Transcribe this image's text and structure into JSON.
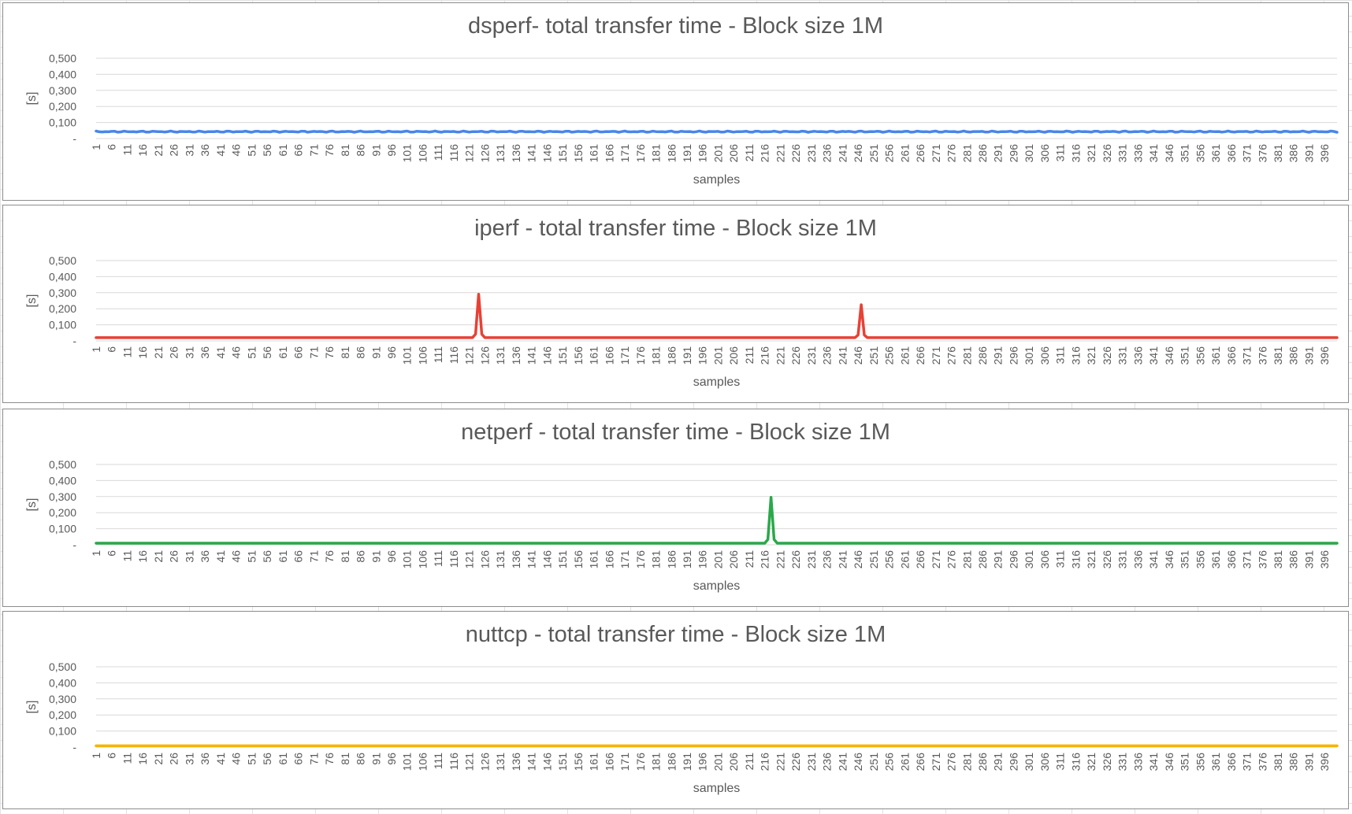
{
  "chart_data": [
    {
      "type": "line",
      "title": "dsperf- total transfer time - Block size 1M",
      "xlabel": "samples",
      "ylabel": "[s]",
      "ylim": [
        0,
        0.5
      ],
      "yticks": [
        0,
        0.1,
        0.2,
        0.3,
        0.4,
        0.5
      ],
      "ytick_labels": [
        "-",
        "0,100",
        "0,200",
        "0,300",
        "0,400",
        "0,500"
      ],
      "x_range": [
        1,
        400
      ],
      "x_tick_labels": [
        "1",
        "6",
        "11",
        "16",
        "21",
        "26",
        "31",
        "36",
        "41",
        "46",
        "51",
        "56",
        "61",
        "66",
        "71",
        "76",
        "81",
        "86",
        "91",
        "96",
        "101",
        "106",
        "111",
        "116",
        "121",
        "126",
        "131",
        "136",
        "141",
        "146",
        "151",
        "156",
        "161",
        "166",
        "171",
        "176",
        "181",
        "186",
        "191",
        "196",
        "201",
        "206",
        "211",
        "216",
        "221",
        "226",
        "231",
        "236",
        "241",
        "246",
        "251",
        "256",
        "261",
        "266",
        "271",
        "276",
        "281",
        "286",
        "291",
        "296",
        "301",
        "306",
        "311",
        "316",
        "321",
        "326",
        "331",
        "336",
        "341",
        "346",
        "351",
        "356",
        "361",
        "366",
        "371",
        "376",
        "381",
        "386",
        "391",
        "396"
      ],
      "grid": true,
      "legend": "none",
      "series": [
        {
          "color": "#4a86e8",
          "baseline": 0.043,
          "jitter": 0.004,
          "spikes": []
        }
      ]
    },
    {
      "type": "line",
      "title": "iperf - total transfer time - Block size 1M",
      "xlabel": "samples",
      "ylabel": "[s]",
      "ylim": [
        0,
        0.5
      ],
      "yticks": [
        0,
        0.1,
        0.2,
        0.3,
        0.4,
        0.5
      ],
      "ytick_labels": [
        "-",
        "0,100",
        "0,200",
        "0,300",
        "0,400",
        "0,500"
      ],
      "x_range": [
        1,
        400
      ],
      "x_tick_labels": [
        "1",
        "6",
        "11",
        "16",
        "21",
        "26",
        "31",
        "36",
        "41",
        "46",
        "51",
        "56",
        "61",
        "66",
        "71",
        "76",
        "81",
        "86",
        "91",
        "96",
        "101",
        "106",
        "111",
        "116",
        "121",
        "126",
        "131",
        "136",
        "141",
        "146",
        "151",
        "156",
        "161",
        "166",
        "171",
        "176",
        "181",
        "186",
        "191",
        "196",
        "201",
        "206",
        "211",
        "216",
        "221",
        "226",
        "231",
        "236",
        "241",
        "246",
        "251",
        "256",
        "261",
        "266",
        "271",
        "276",
        "281",
        "286",
        "291",
        "296",
        "301",
        "306",
        "311",
        "316",
        "321",
        "326",
        "331",
        "336",
        "341",
        "346",
        "351",
        "356",
        "361",
        "366",
        "371",
        "376",
        "381",
        "386",
        "391",
        "396"
      ],
      "grid": true,
      "legend": "none",
      "series": [
        {
          "color": "#e84135",
          "baseline": 0.02,
          "jitter": 0,
          "spikes": [
            {
              "x": 124,
              "y": 0.29
            },
            {
              "x": 247,
              "y": 0.225
            }
          ]
        }
      ]
    },
    {
      "type": "line",
      "title": "netperf - total transfer time - Block size 1M",
      "xlabel": "samples",
      "ylabel": "[s]",
      "ylim": [
        0,
        0.5
      ],
      "yticks": [
        0,
        0.1,
        0.2,
        0.3,
        0.4,
        0.5
      ],
      "ytick_labels": [
        "-",
        "0,100",
        "0,200",
        "0,300",
        "0,400",
        "0,500"
      ],
      "x_range": [
        1,
        400
      ],
      "x_tick_labels": [
        "1",
        "6",
        "11",
        "16",
        "21",
        "26",
        "31",
        "36",
        "41",
        "46",
        "51",
        "56",
        "61",
        "66",
        "71",
        "76",
        "81",
        "86",
        "91",
        "96",
        "101",
        "106",
        "111",
        "116",
        "121",
        "126",
        "131",
        "136",
        "141",
        "146",
        "151",
        "156",
        "161",
        "166",
        "171",
        "176",
        "181",
        "186",
        "191",
        "196",
        "201",
        "206",
        "211",
        "216",
        "221",
        "226",
        "231",
        "236",
        "241",
        "246",
        "251",
        "256",
        "261",
        "266",
        "271",
        "276",
        "281",
        "286",
        "291",
        "296",
        "301",
        "306",
        "311",
        "316",
        "321",
        "326",
        "331",
        "336",
        "341",
        "346",
        "351",
        "356",
        "361",
        "366",
        "371",
        "376",
        "381",
        "386",
        "391",
        "396"
      ],
      "grid": true,
      "legend": "none",
      "series": [
        {
          "color": "#2aa84a",
          "baseline": 0.01,
          "jitter": 0,
          "spikes": [
            {
              "x": 218,
              "y": 0.295
            }
          ]
        }
      ]
    },
    {
      "type": "line",
      "title": "nuttcp - total transfer time - Block size 1M",
      "xlabel": "samples",
      "ylabel": "[s]",
      "ylim": [
        0,
        0.5
      ],
      "yticks": [
        0,
        0.1,
        0.2,
        0.3,
        0.4,
        0.5
      ],
      "ytick_labels": [
        "-",
        "0,100",
        "0,200",
        "0,300",
        "0,400",
        "0,500"
      ],
      "x_range": [
        1,
        400
      ],
      "x_tick_labels": [
        "1",
        "6",
        "11",
        "16",
        "21",
        "26",
        "31",
        "36",
        "41",
        "46",
        "51",
        "56",
        "61",
        "66",
        "71",
        "76",
        "81",
        "86",
        "91",
        "96",
        "101",
        "106",
        "111",
        "116",
        "121",
        "126",
        "131",
        "136",
        "141",
        "146",
        "151",
        "156",
        "161",
        "166",
        "171",
        "176",
        "181",
        "186",
        "191",
        "196",
        "201",
        "206",
        "211",
        "216",
        "221",
        "226",
        "231",
        "236",
        "241",
        "246",
        "251",
        "256",
        "261",
        "266",
        "271",
        "276",
        "281",
        "286",
        "291",
        "296",
        "301",
        "306",
        "311",
        "316",
        "321",
        "326",
        "331",
        "336",
        "341",
        "346",
        "351",
        "356",
        "361",
        "366",
        "371",
        "376",
        "381",
        "386",
        "391",
        "396"
      ],
      "grid": true,
      "legend": "none",
      "series": [
        {
          "color": "#f5b400",
          "baseline": 0.008,
          "jitter": 0,
          "spikes": []
        }
      ]
    }
  ]
}
